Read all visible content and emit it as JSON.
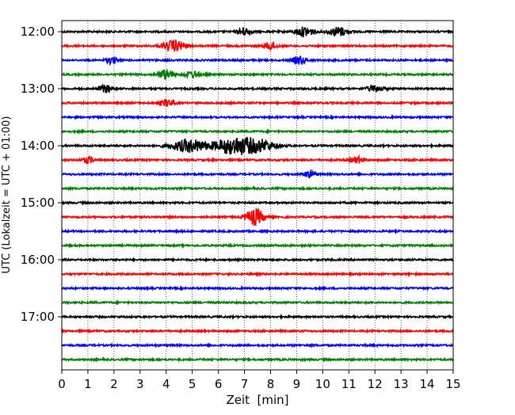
{
  "chart_data": {
    "type": "line",
    "title": "",
    "xlabel": "Zeit  [min]",
    "ylabel": "UTC (Lokalzeit = UTC + 01:00)",
    "xlim": [
      0,
      15
    ],
    "x_ticks": [
      0,
      1,
      2,
      3,
      4,
      5,
      6,
      7,
      8,
      9,
      10,
      11,
      12,
      13,
      14,
      15
    ],
    "y_tick_labels": [
      "12:00",
      "13:00",
      "14:00",
      "15:00",
      "16:00",
      "17:00"
    ],
    "y_tick_rows": [
      0,
      4,
      8,
      12,
      16,
      20
    ],
    "row_minutes": 15,
    "start_time": "12:00",
    "grid_x": true,
    "colors": [
      "#000000",
      "#ff0000",
      "#0000ff",
      "#008000"
    ],
    "rows": [
      {
        "time": "12:00",
        "color": "#000000",
        "events": [
          {
            "t": 7.0,
            "amp": 5,
            "dur": 0.25
          },
          {
            "t": 9.3,
            "amp": 6,
            "dur": 0.35
          },
          {
            "t": 10.6,
            "amp": 6,
            "dur": 0.35
          }
        ]
      },
      {
        "time": "12:15",
        "color": "#ff0000",
        "events": [
          {
            "t": 4.3,
            "amp": 7,
            "dur": 0.4
          },
          {
            "t": 8.0,
            "amp": 5,
            "dur": 0.25
          }
        ]
      },
      {
        "time": "12:30",
        "color": "#0000ff",
        "events": [
          {
            "t": 1.9,
            "amp": 4,
            "dur": 0.2
          },
          {
            "t": 9.1,
            "amp": 5,
            "dur": 0.25
          }
        ]
      },
      {
        "time": "12:45",
        "color": "#008000",
        "events": [
          {
            "t": 4.0,
            "amp": 6,
            "dur": 0.3
          },
          {
            "t": 5.0,
            "amp": 4,
            "dur": 0.3
          }
        ]
      },
      {
        "time": "13:00",
        "color": "#000000",
        "events": [
          {
            "t": 1.7,
            "amp": 5,
            "dur": 0.25
          },
          {
            "t": 12.0,
            "amp": 4,
            "dur": 0.3
          }
        ]
      },
      {
        "time": "13:15",
        "color": "#ff0000",
        "events": [
          {
            "t": 4.0,
            "amp": 4,
            "dur": 0.3
          }
        ]
      },
      {
        "time": "13:30",
        "color": "#0000ff",
        "events": []
      },
      {
        "time": "13:45",
        "color": "#008000",
        "events": []
      },
      {
        "time": "14:00",
        "color": "#000000",
        "events": [
          {
            "t": 4.9,
            "amp": 8,
            "dur": 0.7
          },
          {
            "t": 6.6,
            "amp": 11,
            "dur": 0.7
          },
          {
            "t": 7.6,
            "amp": 7,
            "dur": 0.6
          }
        ]
      },
      {
        "time": "14:15",
        "color": "#ff0000",
        "events": [
          {
            "t": 1.0,
            "amp": 4,
            "dur": 0.2
          },
          {
            "t": 11.3,
            "amp": 4,
            "dur": 0.25
          }
        ]
      },
      {
        "time": "14:30",
        "color": "#0000ff",
        "events": [
          {
            "t": 9.5,
            "amp": 4,
            "dur": 0.25
          }
        ]
      },
      {
        "time": "14:45",
        "color": "#008000",
        "events": []
      },
      {
        "time": "15:00",
        "color": "#000000",
        "events": []
      },
      {
        "time": "15:15",
        "color": "#ff0000",
        "events": [
          {
            "t": 7.4,
            "amp": 10,
            "dur": 0.35
          }
        ]
      },
      {
        "time": "15:30",
        "color": "#0000ff",
        "events": []
      },
      {
        "time": "15:45",
        "color": "#008000",
        "events": []
      },
      {
        "time": "16:00",
        "color": "#000000",
        "events": []
      },
      {
        "time": "16:15",
        "color": "#ff0000",
        "events": []
      },
      {
        "time": "16:30",
        "color": "#0000ff",
        "events": []
      },
      {
        "time": "16:45",
        "color": "#008000",
        "events": []
      },
      {
        "time": "17:00",
        "color": "#000000",
        "events": []
      },
      {
        "time": "17:15",
        "color": "#ff0000",
        "events": []
      },
      {
        "time": "17:30",
        "color": "#0000ff",
        "events": []
      },
      {
        "time": "17:45",
        "color": "#008000",
        "events": []
      }
    ]
  }
}
